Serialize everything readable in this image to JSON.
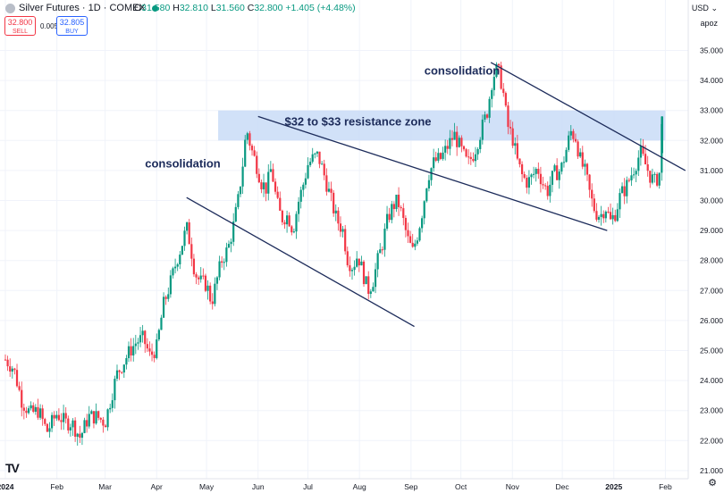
{
  "header": {
    "symbol_title": "Silver Futures · 1D · COMEX",
    "ohlc": [
      {
        "label": "O",
        "value": "31.580"
      },
      {
        "label": "H",
        "value": "32.810"
      },
      {
        "label": "L",
        "value": "31.560"
      },
      {
        "label": "C",
        "value": "32.800"
      }
    ],
    "change": "+1.405 (+4.48%)",
    "sell_price": "32.800",
    "sell_label": "SELL",
    "buy_price": "32.805",
    "buy_label": "BUY",
    "spread": "0.005",
    "currency": "USD",
    "currency_caret": "⌄",
    "scale_mode": "apoz"
  },
  "colors": {
    "up": "#089981",
    "down": "#f23645",
    "trendline": "#1c2b5a",
    "zone_fill": "#c9dcf7",
    "annotation_text": "#1c2b5a"
  },
  "chart_data": {
    "type": "candlestick",
    "title": "",
    "xlabel": "",
    "ylabel": "",
    "ylim": [
      21.0,
      35.6
    ],
    "y_ticks": [
      "35.000",
      "34.000",
      "33.000",
      "32.000",
      "31.000",
      "30.000",
      "29.000",
      "28.000",
      "27.000",
      "26.000",
      "25.000",
      "24.000",
      "23.000",
      "22.000",
      "21.000"
    ],
    "x_ticks": [
      {
        "label": "2024",
        "day": 0
      },
      {
        "label": "Feb",
        "day": 31
      },
      {
        "label": "Mar",
        "day": 60
      },
      {
        "label": "Apr",
        "day": 91
      },
      {
        "label": "May",
        "day": 121
      },
      {
        "label": "Jun",
        "day": 152
      },
      {
        "label": "Jul",
        "day": 182
      },
      {
        "label": "Aug",
        "day": 213
      },
      {
        "label": "Sep",
        "day": 244
      },
      {
        "label": "Oct",
        "day": 274
      },
      {
        "label": "Nov",
        "day": 305
      },
      {
        "label": "Dec",
        "day": 335
      },
      {
        "label": "2025",
        "day": 366
      },
      {
        "label": "Feb",
        "day": 397
      }
    ],
    "price_path": [
      [
        0,
        24.7
      ],
      [
        5,
        24.4
      ],
      [
        10,
        23.3
      ],
      [
        15,
        22.9
      ],
      [
        20,
        23.0
      ],
      [
        25,
        22.3
      ],
      [
        31,
        22.9
      ],
      [
        36,
        22.6
      ],
      [
        40,
        22.6
      ],
      [
        45,
        22.1
      ],
      [
        50,
        22.8
      ],
      [
        55,
        22.8
      ],
      [
        60,
        22.6
      ],
      [
        63,
        23.3
      ],
      [
        67,
        24.2
      ],
      [
        71,
        24.6
      ],
      [
        75,
        25.0
      ],
      [
        79,
        25.3
      ],
      [
        83,
        25.4
      ],
      [
        87,
        24.8
      ],
      [
        91,
        25.1
      ],
      [
        95,
        26.5
      ],
      [
        99,
        27.2
      ],
      [
        103,
        28.0
      ],
      [
        106,
        28.5
      ],
      [
        109,
        29.1
      ],
      [
        111,
        28.6
      ],
      [
        114,
        27.6
      ],
      [
        117,
        27.3
      ],
      [
        121,
        27.2
      ],
      [
        124,
        26.6
      ],
      [
        127,
        27.3
      ],
      [
        130,
        28.0
      ],
      [
        134,
        28.4
      ],
      [
        137,
        29.1
      ],
      [
        140,
        30.0
      ],
      [
        143,
        31.3
      ],
      [
        145,
        32.4
      ],
      [
        148,
        31.7
      ],
      [
        151,
        31.2
      ],
      [
        154,
        30.6
      ],
      [
        157,
        30.4
      ],
      [
        160,
        31.1
      ],
      [
        163,
        30.0
      ],
      [
        166,
        29.4
      ],
      [
        170,
        29.5
      ],
      [
        173,
        29.0
      ],
      [
        176,
        29.9
      ],
      [
        179,
        30.5
      ],
      [
        182,
        31.2
      ],
      [
        185,
        31.4
      ],
      [
        188,
        31.5
      ],
      [
        191,
        31.0
      ],
      [
        195,
        30.2
      ],
      [
        199,
        29.4
      ],
      [
        203,
        29.0
      ],
      [
        206,
        28.0
      ],
      [
        209,
        27.8
      ],
      [
        212,
        28.2
      ],
      [
        215,
        27.6
      ],
      [
        218,
        27.0
      ],
      [
        221,
        27.3
      ],
      [
        224,
        28.0
      ],
      [
        227,
        28.6
      ],
      [
        230,
        29.4
      ],
      [
        233,
        29.8
      ],
      [
        236,
        30.0
      ],
      [
        239,
        29.4
      ],
      [
        242,
        28.7
      ],
      [
        245,
        28.3
      ],
      [
        248,
        28.9
      ],
      [
        251,
        29.7
      ],
      [
        254,
        30.8
      ],
      [
        258,
        31.3
      ],
      [
        262,
        31.4
      ],
      [
        266,
        31.8
      ],
      [
        270,
        32.2
      ],
      [
        274,
        31.7
      ],
      [
        278,
        31.2
      ],
      [
        282,
        31.6
      ],
      [
        286,
        32.3
      ],
      [
        290,
        33.0
      ],
      [
        293,
        34.1
      ],
      [
        296,
        34.4
      ],
      [
        299,
        33.8
      ],
      [
        302,
        32.5
      ],
      [
        305,
        32.1
      ],
      [
        308,
        31.3
      ],
      [
        311,
        30.8
      ],
      [
        314,
        30.6
      ],
      [
        317,
        30.8
      ],
      [
        320,
        31.1
      ],
      [
        323,
        30.6
      ],
      [
        326,
        30.3
      ],
      [
        330,
        30.9
      ],
      [
        334,
        31.0
      ],
      [
        337,
        31.6
      ],
      [
        340,
        32.3
      ],
      [
        343,
        32.1
      ],
      [
        346,
        31.3
      ],
      [
        349,
        30.9
      ],
      [
        352,
        30.1
      ],
      [
        355,
        29.6
      ],
      [
        358,
        29.5
      ],
      [
        361,
        29.8
      ],
      [
        364,
        29.3
      ],
      [
        367,
        29.6
      ],
      [
        370,
        30.2
      ],
      [
        373,
        30.4
      ],
      [
        376,
        30.8
      ],
      [
        379,
        31.2
      ],
      [
        382,
        31.6
      ],
      [
        385,
        31.2
      ],
      [
        388,
        30.8
      ],
      [
        391,
        30.6
      ],
      [
        394,
        31.0
      ],
      [
        395,
        32.8
      ]
    ],
    "last_candle": {
      "open": 31.58,
      "high": 32.81,
      "low": 31.56,
      "close": 32.8
    },
    "annotations": [
      {
        "text": "consolidation",
        "x_day": 84,
        "price": 31.1
      },
      {
        "text": "consolidation",
        "x_day": 252,
        "price": 34.2
      },
      {
        "text": "$32 to $33 resistance zone",
        "x_day": 168,
        "price": 32.5
      }
    ],
    "resistance_zone": {
      "from_day": 128,
      "to_day": 397,
      "low": 32.0,
      "high": 33.0
    },
    "trendlines": [
      {
        "x1_day": 109,
        "y1": 30.1,
        "x2_day": 246,
        "y2": 25.8
      },
      {
        "x1_day": 152,
        "y1": 32.8,
        "x2_day": 362,
        "y2": 29.0
      },
      {
        "x1_day": 292,
        "y1": 34.6,
        "x2_day": 409,
        "y2": 31.0
      }
    ]
  },
  "footer": {
    "logo": "TV",
    "settings_icon": "gear-icon"
  }
}
